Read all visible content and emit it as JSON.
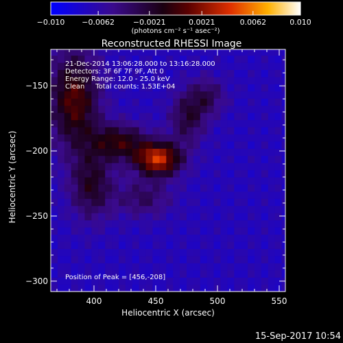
{
  "chart_data": {
    "type": "heatmap",
    "title": "Reconstructed RHESSI Image",
    "xlabel": "Heliocentric X (arcsec)",
    "ylabel": "Heliocentric Y (arcsec)",
    "xlim": [
      365,
      555
    ],
    "ylim": [
      -308,
      -122
    ],
    "x_ticks": [
      400,
      450,
      500,
      550
    ],
    "y_ticks": [
      -150,
      -200,
      -250,
      -300
    ],
    "x_tick_labels": [
      "400",
      "450",
      "500",
      "550"
    ],
    "y_tick_labels": [
      "−150",
      "−200",
      "−250",
      "−300"
    ],
    "colorbar": {
      "range": [
        -0.01,
        0.01
      ],
      "ticks": [
        -0.01,
        -0.0062,
        -0.0021,
        0.0021,
        0.0062,
        0.01
      ],
      "tick_labels": [
        "−0.010",
        "−0.0062",
        "−0.0021",
        "0.0021",
        "0.0062",
        "0.010"
      ],
      "unit_label": "(photons cm⁻² s⁻¹ asec⁻²)"
    },
    "annotations": [
      "21-Dec-2014 13:06:28.000 to 13:16:28.000",
      "Detectors: 3F 6F 7F 9F, Att 0",
      "Energy Range: 12.0 - 25.0 keV",
      "Clean     Total counts: 1.53E+04"
    ],
    "peak_label": "Position of Peak = [456,-208]",
    "peak": [
      456,
      -208
    ],
    "date_stamp": "15-Sep-2017 10:54",
    "sources": [
      {
        "x": 452,
        "y": -206,
        "sx": 13,
        "sy": 9,
        "amp": 0.0105
      },
      {
        "x": 420,
        "y": -193,
        "sx": 16,
        "sy": 10,
        "amp": 0.0062
      },
      {
        "x": 384,
        "y": -160,
        "sx": 14,
        "sy": 26,
        "amp": 0.0075
      },
      {
        "x": 398,
        "y": -226,
        "sx": 12,
        "sy": 18,
        "amp": 0.0052
      },
      {
        "x": 476,
        "y": -174,
        "sx": 10,
        "sy": 14,
        "amp": 0.0046
      },
      {
        "x": 492,
        "y": -158,
        "sx": 10,
        "sy": 10,
        "amp": 0.0036
      },
      {
        "x": 440,
        "y": -236,
        "sx": 16,
        "sy": 10,
        "amp": 0.0034
      }
    ],
    "background": -0.0068
  }
}
